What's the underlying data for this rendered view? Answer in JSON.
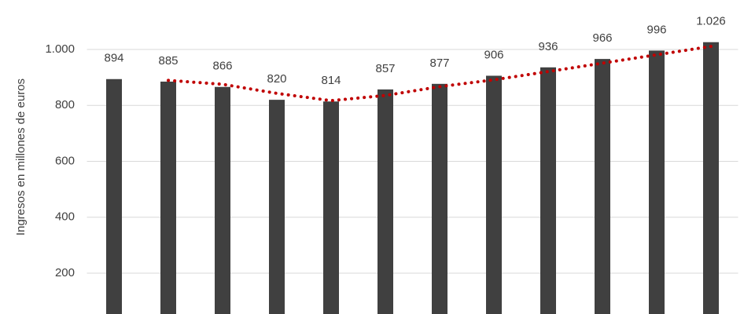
{
  "chart_data": {
    "type": "bar",
    "y_label": "Ingresos en millones de euros",
    "categories": [
      null,
      null,
      null,
      null,
      null,
      null,
      null,
      null,
      null,
      null,
      null,
      null
    ],
    "values": [
      894,
      885,
      866,
      820,
      814,
      857,
      877,
      906,
      936,
      966,
      996,
      1026
    ],
    "value_labels": [
      "894",
      "885",
      "866",
      "820",
      "814",
      "857",
      "877",
      "906",
      "936",
      "966",
      "996",
      "1.026"
    ],
    "color": "#404040",
    "trend_values": [
      null,
      889.5,
      875.5,
      843,
      817,
      835.5,
      867,
      891.5,
      921,
      951,
      981,
      1011
    ],
    "trend_color": "#c00000",
    "ylim": [
      0,
      1200
    ],
    "yticks": [
      200,
      400,
      600,
      800,
      {
        "value": 1000,
        "label": "1.000"
      }
    ],
    "grid": true
  }
}
